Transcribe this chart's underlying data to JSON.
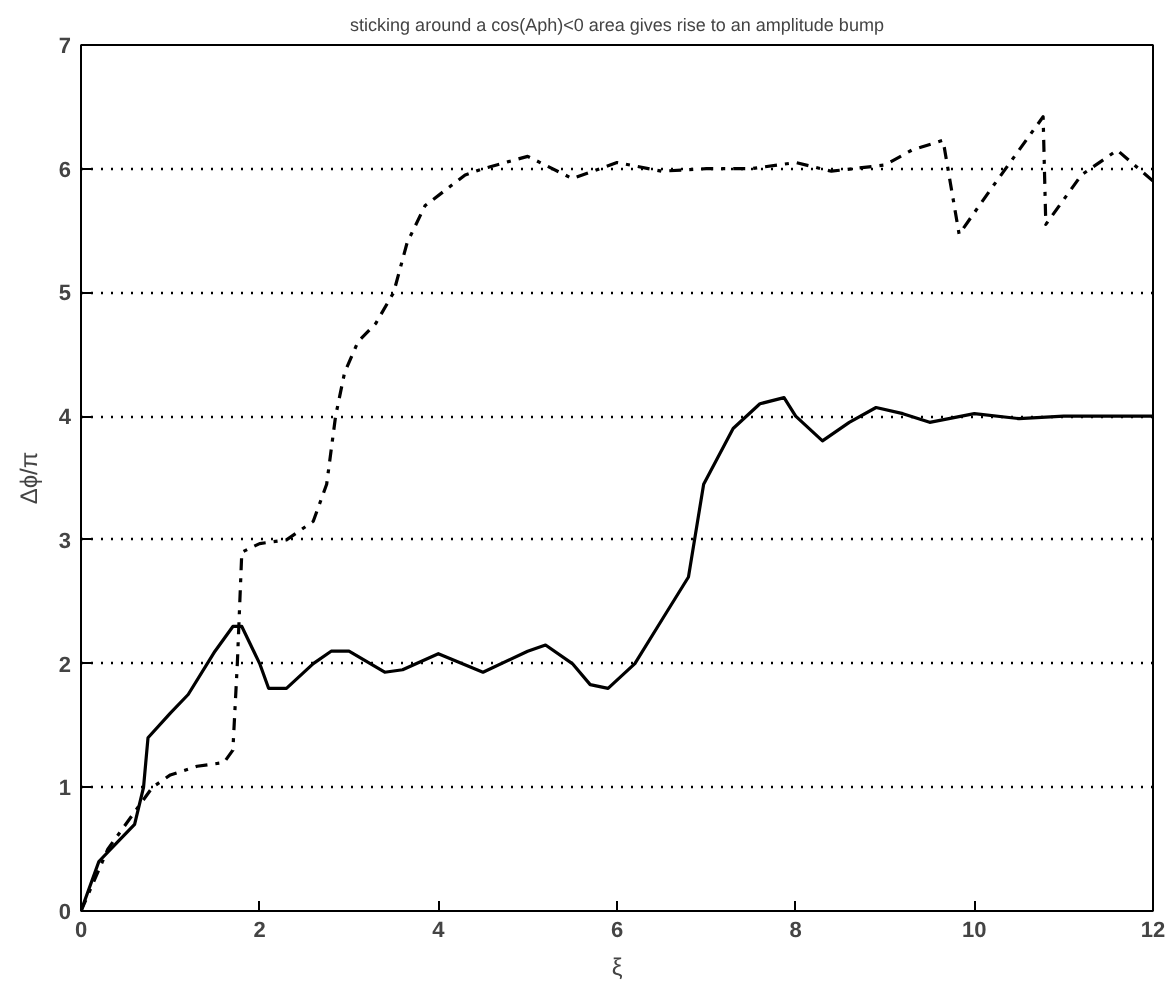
{
  "chart_data": {
    "type": "line",
    "title": "sticking around a cos(Aph)<0 area gives rise to an amplitude bump",
    "xlabel": "ξ",
    "ylabel": "Δϕ/π",
    "xlim": [
      0,
      12
    ],
    "ylim": [
      0,
      7
    ],
    "xticks": [
      0,
      2,
      4,
      6,
      8,
      10,
      12
    ],
    "yticks": [
      0,
      1,
      2,
      3,
      4,
      5,
      6,
      7
    ],
    "grid": "y",
    "series": [
      {
        "color": "#000000",
        "line_style": "solid",
        "x": [
          0,
          0.2,
          0.4,
          0.6,
          0.7,
          0.75,
          1.0,
          1.2,
          1.5,
          1.7,
          1.8,
          2.0,
          2.1,
          2.3,
          2.6,
          2.8,
          3.0,
          3.4,
          3.6,
          4.0,
          4.5,
          5.0,
          5.2,
          5.5,
          5.7,
          5.9,
          6.2,
          6.5,
          6.8,
          6.97,
          7.3,
          7.6,
          7.87,
          8.0,
          8.3,
          8.6,
          8.9,
          9.2,
          9.5,
          10.0,
          10.5,
          11.0,
          12.0
        ],
        "values": [
          0,
          0.4,
          0.55,
          0.7,
          1.0,
          1.4,
          1.6,
          1.75,
          2.1,
          2.3,
          2.3,
          2.0,
          1.8,
          1.8,
          2.0,
          2.1,
          2.1,
          1.93,
          1.95,
          2.08,
          1.93,
          2.1,
          2.15,
          2.0,
          1.83,
          1.8,
          2.0,
          2.35,
          2.7,
          3.45,
          3.9,
          4.1,
          4.15,
          4.0,
          3.8,
          3.95,
          4.07,
          4.02,
          3.95,
          4.02,
          3.98,
          4.0,
          4.0
        ]
      },
      {
        "color": "#000000",
        "line_style": "dashdot",
        "x": [
          0,
          0.3,
          0.6,
          0.8,
          1.0,
          1.3,
          1.6,
          1.7,
          1.75,
          1.8,
          2.0,
          2.3,
          2.6,
          2.75,
          2.85,
          2.95,
          3.1,
          3.3,
          3.5,
          3.65,
          3.85,
          4.3,
          4.5,
          5.0,
          5.5,
          6.0,
          6.5,
          7.0,
          7.5,
          8.0,
          8.4,
          9.0,
          9.3,
          9.65,
          9.83,
          10.2,
          10.77,
          10.8,
          11.2,
          11.6,
          12.0
        ],
        "values": [
          0,
          0.5,
          0.8,
          1.0,
          1.1,
          1.17,
          1.2,
          1.3,
          2.0,
          2.9,
          2.97,
          3.0,
          3.15,
          3.45,
          4.0,
          4.35,
          4.6,
          4.75,
          5.0,
          5.4,
          5.7,
          5.95,
          6.0,
          6.1,
          5.92,
          6.05,
          5.98,
          6.0,
          6.0,
          6.05,
          5.98,
          6.03,
          6.15,
          6.23,
          5.47,
          5.85,
          6.42,
          5.55,
          5.95,
          6.15,
          5.9
        ]
      }
    ]
  }
}
